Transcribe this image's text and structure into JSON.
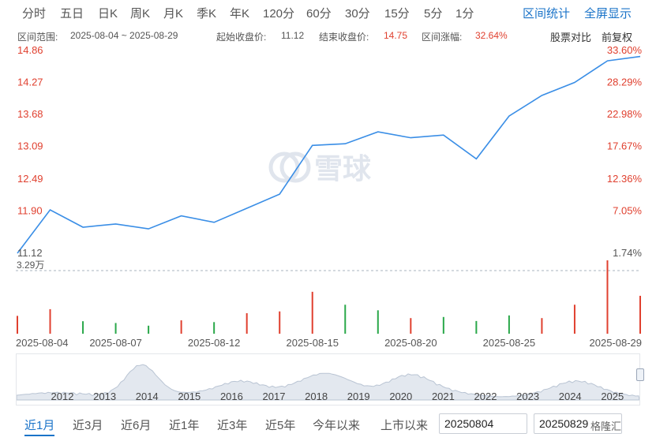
{
  "tabs": [
    "分时",
    "五日",
    "日K",
    "周K",
    "月K",
    "季K",
    "年K",
    "120分",
    "60分",
    "30分",
    "15分",
    "5分",
    "1分"
  ],
  "right_tabs": [
    "区间统计",
    "全屏显示"
  ],
  "info": {
    "range_label": "区间范围:",
    "range_value": "2025-08-04 ~ 2025-08-29",
    "start_label": "起始收盘价:",
    "start_value": "11.12",
    "end_label": "结束收盘价:",
    "end_value": "14.75",
    "change_label": "区间涨幅:",
    "change_value": "32.64%",
    "compare": "股票对比",
    "adjust": "前复权"
  },
  "watermark": "雪球",
  "volume_label": "3.29万",
  "colors": {
    "line": "#3a8ee6",
    "up": "#e0402f",
    "down": "#2aa84a",
    "accent": "#1a73c8"
  },
  "chart_data": {
    "type": "line",
    "x": [
      "2025-08-04",
      "2025-08-05",
      "2025-08-06",
      "2025-08-07",
      "2025-08-08",
      "2025-08-11",
      "2025-08-12",
      "2025-08-13",
      "2025-08-14",
      "2025-08-15",
      "2025-08-18",
      "2025-08-19",
      "2025-08-20",
      "2025-08-21",
      "2025-08-22",
      "2025-08-25",
      "2025-08-26",
      "2025-08-27",
      "2025-08-28",
      "2025-08-29"
    ],
    "series": [
      {
        "values": [
          11.12,
          11.92,
          11.6,
          11.66,
          11.57,
          11.81,
          11.69,
          11.95,
          12.21,
          13.11,
          13.14,
          13.36,
          13.25,
          13.3,
          12.86,
          13.65,
          14.03,
          14.27,
          14.67,
          14.75
        ]
      }
    ],
    "y_left_ticks": [
      "14.86",
      "14.27",
      "13.68",
      "13.09",
      "12.49",
      "11.90",
      "11.12"
    ],
    "y_right_ticks": [
      "33.60%",
      "28.29%",
      "22.98%",
      "17.67%",
      "12.36%",
      "7.05%",
      "1.74%"
    ],
    "ylim": [
      11.12,
      14.86
    ],
    "x_ticks": [
      "2025-08-04",
      "2025-08-07",
      "2025-08-12",
      "2025-08-15",
      "2025-08-20",
      "2025-08-25",
      "2025-08-29"
    ],
    "volume": {
      "max": "3.29万",
      "values": [
        0.8,
        1.1,
        0.56,
        0.48,
        0.36,
        0.6,
        0.52,
        0.92,
        1.0,
        1.88,
        1.3,
        1.05,
        0.7,
        0.75,
        0.57,
        0.82,
        0.7,
        1.3,
        3.29,
        1.7
      ],
      "direction": [
        "up",
        "up",
        "down",
        "down",
        "down",
        "up",
        "down",
        "up",
        "up",
        "up",
        "down",
        "down",
        "up",
        "down",
        "down",
        "down",
        "up",
        "up",
        "up",
        "up"
      ]
    },
    "grid": false
  },
  "navigator": {
    "years": [
      "2012",
      "2013",
      "2014",
      "2015",
      "2016",
      "2017",
      "2018",
      "2019",
      "2020",
      "2021",
      "2022",
      "2023",
      "2024",
      "2025"
    ]
  },
  "ranges": [
    "近1月",
    "近3月",
    "近6月",
    "近1年",
    "近3年",
    "近5年",
    "今年以来",
    "上市以来"
  ],
  "date_from": "20250804",
  "date_to": "20250829",
  "footer_mark": "格隆汇"
}
